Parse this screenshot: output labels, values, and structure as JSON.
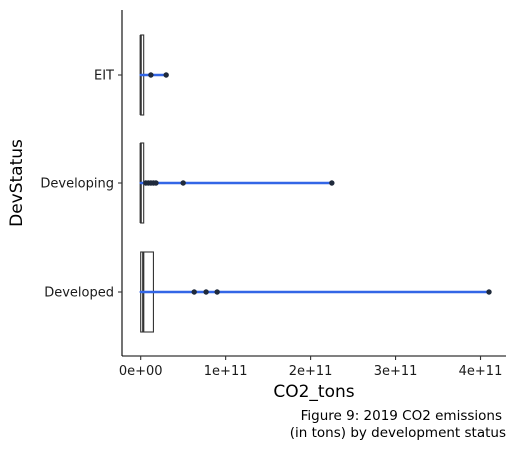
{
  "chart_data": {
    "type": "boxplot",
    "caption_lines": [
      "Figure 9: 2019 CO2 emissions",
      "(in tons) by development status"
    ],
    "xlabel": "CO2_tons",
    "ylabel": "DevStatus",
    "xlim": [
      -22000000000.0,
      430000000000.0
    ],
    "x_ticks": [
      {
        "value": 0,
        "label": "0e+00"
      },
      {
        "value": 100000000000.0,
        "label": "1e+11"
      },
      {
        "value": 200000000000.0,
        "label": "2e+11"
      },
      {
        "value": 300000000000.0,
        "label": "3e+11"
      },
      {
        "value": 400000000000.0,
        "label": "4e+11"
      }
    ],
    "categories": [
      "EIT",
      "Developing",
      "Developed"
    ],
    "grid": false,
    "colors": {
      "box": "#333333",
      "line": "#3366e6",
      "point": "#1f2a3c"
    },
    "series": [
      {
        "category": "EIT",
        "box": {
          "q1": 0,
          "median": 0,
          "q3": 0
        },
        "range": [
          0,
          30000000000.0
        ],
        "points": [
          12000000000.0,
          30000000000.0
        ]
      },
      {
        "category": "Developing",
        "box": {
          "q1": 0,
          "median": 0,
          "q3": 0
        },
        "range": [
          0,
          225000000000.0
        ],
        "points": [
          6000000000.0,
          9000000000.0,
          12000000000.0,
          15000000000.0,
          18000000000.0,
          50000000000.0,
          225000000000.0
        ]
      },
      {
        "category": "Developed",
        "box": {
          "q1": 0,
          "median": 3000000000.0,
          "q3": 15000000000.0
        },
        "range": [
          0,
          410000000000.0
        ],
        "points": [
          63000000000.0,
          77000000000.0,
          90000000000.0,
          410000000000.0
        ]
      }
    ]
  }
}
